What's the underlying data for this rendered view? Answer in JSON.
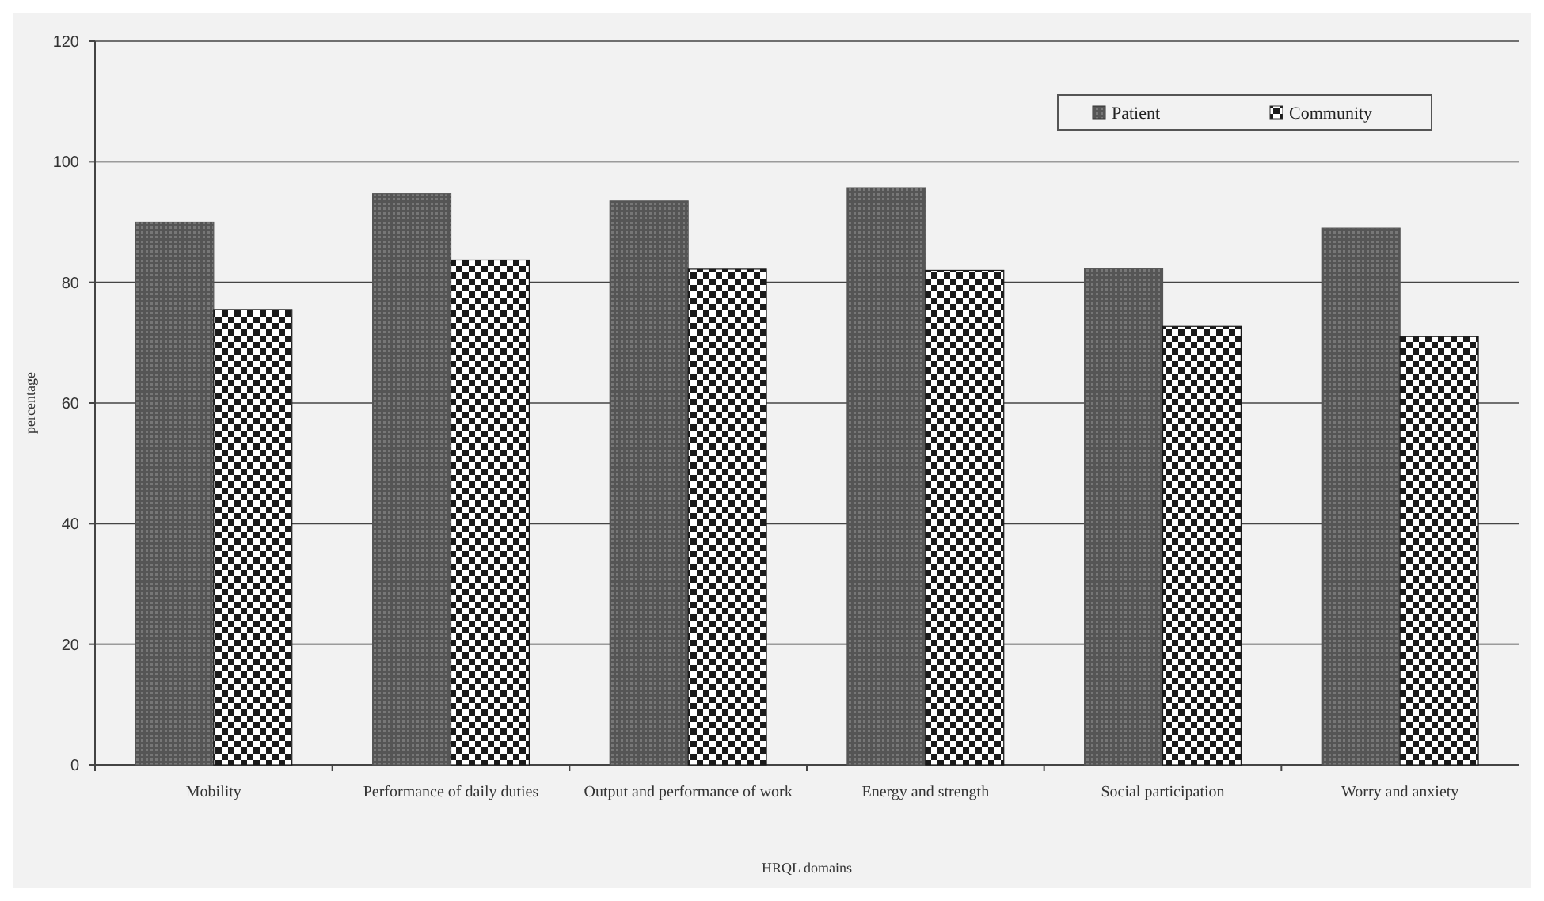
{
  "chart_data": {
    "type": "bar",
    "xlabel": "HRQL domains",
    "ylabel": "percentage",
    "categories": [
      "Mobility",
      "Performance of daily duties",
      "Output and performance of work",
      "Energy and strength",
      "Social participation",
      "Worry and anxiety"
    ],
    "series": [
      {
        "name": "Patient",
        "color": "#555555",
        "values": [
          90,
          94.7,
          93.5,
          95.7,
          82.3,
          89
        ]
      },
      {
        "name": "Community",
        "color": "#1a1a1a",
        "values": [
          75.5,
          83.7,
          82.2,
          82,
          72.7,
          71
        ]
      }
    ],
    "ylim": [
      0,
      120
    ],
    "yticks": [
      0,
      20,
      40,
      60,
      80,
      100,
      120
    ],
    "grid": "y",
    "legend": "top right"
  }
}
